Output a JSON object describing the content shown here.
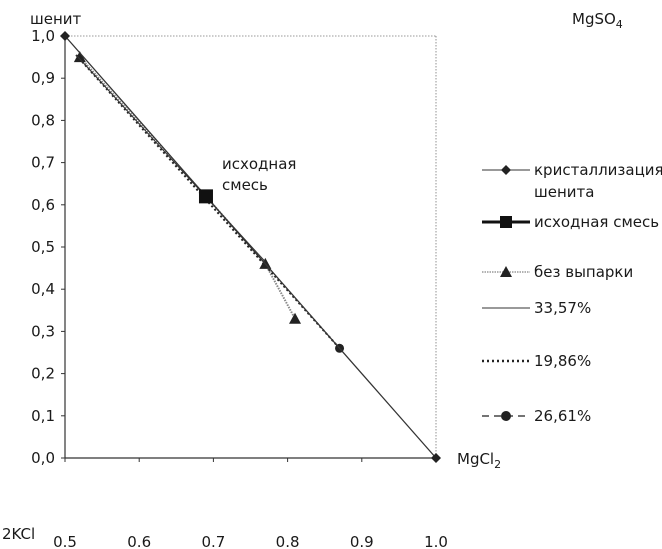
{
  "chart_data": {
    "type": "line",
    "xlim": [
      0.5,
      1.0
    ],
    "ylim": [
      0.0,
      1.0
    ],
    "grid": false,
    "legend_position": "right",
    "x_ticks": [
      "0.5",
      "0.6",
      "0.7",
      "0.8",
      "0.9",
      "1.0"
    ],
    "y_ticks": [
      "0,0",
      "0,1",
      "0,2",
      "0,3",
      "0,4",
      "0,5",
      "0,6",
      "0,7",
      "0,8",
      "0,9",
      "1,0"
    ],
    "corner_labels": {
      "top_left": "шенит",
      "top_right": "MgSO",
      "top_right_sub": "4",
      "bottom_left": "2KCl",
      "bottom_right": "MgCl",
      "bottom_right_sub": "2"
    },
    "annotation": {
      "line1": "исходная",
      "line2": "смесь",
      "x": 0.69,
      "y": 0.62
    },
    "series": [
      {
        "name": "кристаллизация шенита",
        "name_line1": "кристаллизация",
        "name_line2": "шенита",
        "style": "solid",
        "marker": "diamond",
        "color": "#333333",
        "x": [
          0.5,
          0.69,
          1.0
        ],
        "y": [
          1.0,
          0.62,
          0.0
        ]
      },
      {
        "name": "исходная смесь",
        "style": "solid-bold",
        "marker": "square",
        "color": "#111111",
        "x": [
          0.69
        ],
        "y": [
          0.62
        ]
      },
      {
        "name": "без выпарки",
        "style": "dotted-gray",
        "marker": "triangle",
        "color": "#888888",
        "x": [
          0.52,
          0.69,
          0.77,
          0.81
        ],
        "y": [
          0.95,
          0.62,
          0.46,
          0.33
        ]
      },
      {
        "name": "33,57%",
        "style": "solid-thin",
        "marker": "none",
        "color": "#333333",
        "x": [
          0.515,
          0.77
        ],
        "y": [
          0.955,
          0.465
        ]
      },
      {
        "name": "19,86%",
        "style": "dotted",
        "marker": "none",
        "color": "#222222",
        "x": [
          0.515,
          0.87
        ],
        "y": [
          0.955,
          0.26
        ]
      },
      {
        "name": "26,61%",
        "style": "dashed",
        "marker": "circle",
        "color": "#222222",
        "x": [
          0.87
        ],
        "y": [
          0.26
        ]
      }
    ]
  }
}
